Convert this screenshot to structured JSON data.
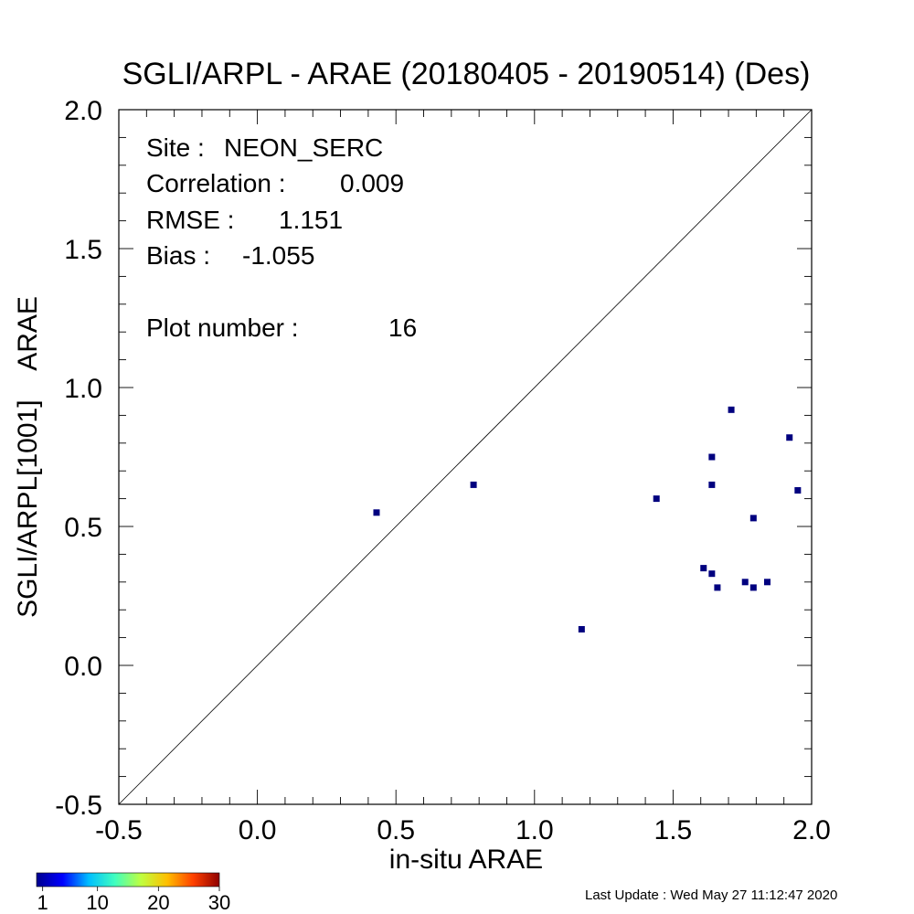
{
  "chart_data": {
    "type": "scatter",
    "title": "SGLI/ARPL - ARAE (20180405 - 20190514) (Des)",
    "xlabel": "in-situ ARAE",
    "ylabel": "SGLI/ARPL[1001]    ARAE",
    "xlim": [
      -0.5,
      2.0
    ],
    "ylim": [
      -0.5,
      2.0
    ],
    "x_ticks": [
      "-0.5",
      "0.0",
      "0.5",
      "1.0",
      "1.5",
      "2.0"
    ],
    "y_ticks": [
      "-0.5",
      "0.0",
      "0.5",
      "1.0",
      "1.5",
      "2.0"
    ],
    "reference_line": "1:1",
    "marker_color": "#00007f",
    "points": [
      {
        "x": 0.43,
        "y": 0.55
      },
      {
        "x": 0.78,
        "y": 0.65
      },
      {
        "x": 1.17,
        "y": 0.13
      },
      {
        "x": 1.44,
        "y": 0.6
      },
      {
        "x": 1.61,
        "y": 0.35
      },
      {
        "x": 1.64,
        "y": 0.33
      },
      {
        "x": 1.64,
        "y": 0.65
      },
      {
        "x": 1.64,
        "y": 0.75
      },
      {
        "x": 1.66,
        "y": 0.28
      },
      {
        "x": 1.71,
        "y": 0.92
      },
      {
        "x": 1.76,
        "y": 0.3
      },
      {
        "x": 1.79,
        "y": 0.28
      },
      {
        "x": 1.79,
        "y": 0.53
      },
      {
        "x": 1.84,
        "y": 0.3
      },
      {
        "x": 1.92,
        "y": 0.82
      },
      {
        "x": 1.95,
        "y": 0.63
      }
    ],
    "stats": {
      "site_label": "Site :",
      "site": "NEON_SERC",
      "correlation_label": "Correlation :",
      "correlation": "0.009",
      "rmse_label": "RMSE :",
      "rmse": "1.151",
      "bias_label": "Bias :",
      "bias": "-1.055",
      "plot_number_label": "Plot number :",
      "plot_number": "16"
    },
    "colorbar": {
      "ticks": [
        "1",
        "10",
        "20",
        "30"
      ],
      "colors": [
        "#00008f",
        "#0000ff",
        "#00bfff",
        "#40ffbf",
        "#bfff40",
        "#ffbf00",
        "#ff4000",
        "#8f0000"
      ]
    }
  },
  "footer": "Last Update : Wed May 27 11:12:47 2020"
}
